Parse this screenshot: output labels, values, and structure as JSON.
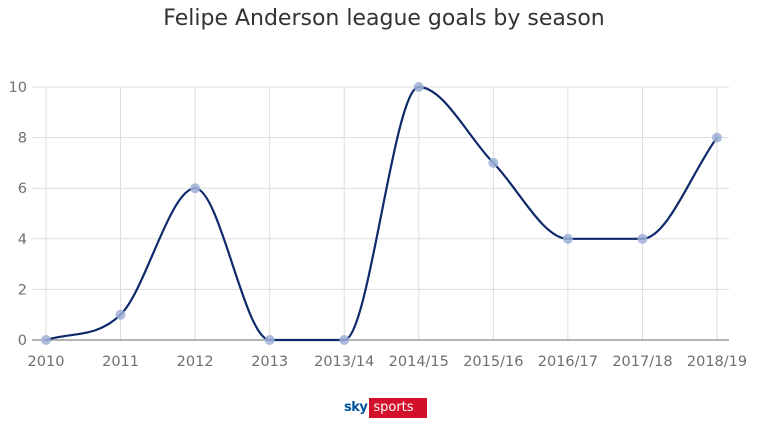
{
  "chart_data": {
    "type": "line",
    "title": "Felipe Anderson league goals by season",
    "xlabel": "",
    "ylabel": "",
    "categories": [
      "2010",
      "2011",
      "2012",
      "2013",
      "2013/14",
      "2014/15",
      "2015/16",
      "2016/17",
      "2017/18",
      "2018/19"
    ],
    "series": [
      {
        "values": [
          0,
          1,
          6,
          0,
          0,
          10,
          7,
          4,
          4,
          8
        ]
      }
    ],
    "ylim": [
      0,
      10
    ],
    "yticks": [
      0,
      2,
      4,
      6,
      8,
      10
    ],
    "grid": true,
    "smooth": true
  },
  "colors": {
    "line": "#0e2a6b",
    "marker": "#9fb0d6",
    "grid": "#dddddd",
    "axis": "#888888",
    "brand_red": "#d2102a",
    "brand_blue": "#00529b"
  },
  "branding": {
    "sky": "sky",
    "sports": "sports"
  }
}
